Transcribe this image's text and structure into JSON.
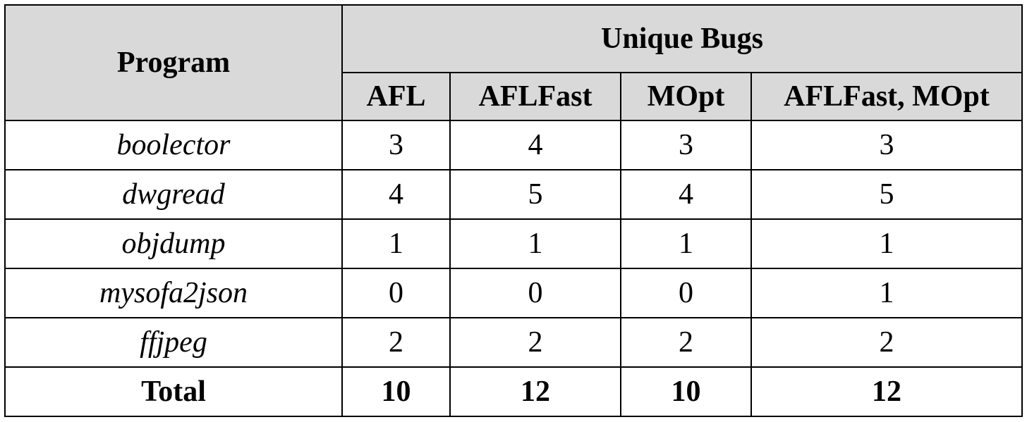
{
  "header": {
    "program_label": "Program",
    "group_label": "Unique Bugs",
    "columns": [
      "AFL",
      "AFLFast",
      "MOpt",
      "AFLFast, MOpt"
    ]
  },
  "rows": [
    {
      "program": "boolector",
      "values": [
        "3",
        "4",
        "3",
        "3"
      ]
    },
    {
      "program": "dwgread",
      "values": [
        "4",
        "5",
        "4",
        "5"
      ]
    },
    {
      "program": "objdump",
      "values": [
        "1",
        "1",
        "1",
        "1"
      ]
    },
    {
      "program": "mysofa2json",
      "values": [
        "0",
        "0",
        "0",
        "1"
      ]
    },
    {
      "program": "ffjpeg",
      "values": [
        "2",
        "2",
        "2",
        "2"
      ]
    }
  ],
  "total": {
    "label": "Total",
    "values": [
      "10",
      "12",
      "10",
      "12"
    ]
  }
}
